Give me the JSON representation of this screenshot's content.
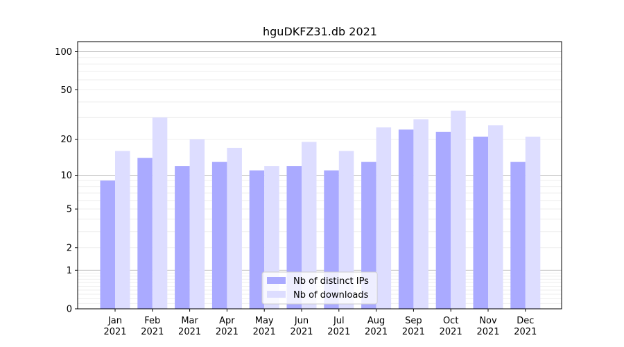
{
  "chart_data": {
    "type": "bar",
    "title": "hguDKFZ31.db 2021",
    "xlabel": "",
    "ylabel": "",
    "y_scale": "symlog",
    "ylim": [
      0,
      120
    ],
    "y_ticks": [
      0,
      1,
      2,
      5,
      10,
      20,
      50,
      100
    ],
    "categories": [
      [
        "Jan",
        "2021"
      ],
      [
        "Feb",
        "2021"
      ],
      [
        "Mar",
        "2021"
      ],
      [
        "Apr",
        "2021"
      ],
      [
        "May",
        "2021"
      ],
      [
        "Jun",
        "2021"
      ],
      [
        "Jul",
        "2021"
      ],
      [
        "Aug",
        "2021"
      ],
      [
        "Sep",
        "2021"
      ],
      [
        "Oct",
        "2021"
      ],
      [
        "Nov",
        "2021"
      ],
      [
        "Dec",
        "2021"
      ]
    ],
    "series": [
      {
        "name": "Nb of distinct IPs",
        "color": "#aaaaff",
        "values": [
          9,
          14,
          12,
          13,
          11,
          12,
          11,
          13,
          24,
          23,
          21,
          13
        ]
      },
      {
        "name": "Nb of downloads",
        "color": "#ddddff",
        "values": [
          16,
          30,
          20,
          17,
          12,
          19,
          16,
          25,
          29,
          34,
          26,
          21
        ]
      }
    ],
    "grid": true,
    "legend_position": "bottom-center"
  }
}
